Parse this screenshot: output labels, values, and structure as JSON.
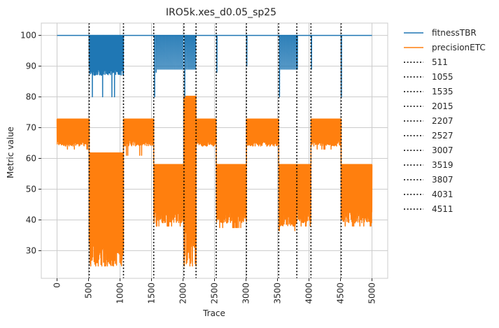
{
  "chart_data": {
    "type": "line",
    "title": "IRO5k.xes_d0.05_sp25",
    "xlabel": "Trace",
    "ylabel": "Metric value",
    "xlim": [
      -250,
      5250
    ],
    "ylim": [
      21,
      104
    ],
    "xticks": [
      0,
      500,
      1000,
      1500,
      2000,
      2500,
      3000,
      3500,
      4000,
      4500,
      5000
    ],
    "yticks": [
      30,
      40,
      50,
      60,
      70,
      80,
      90,
      100
    ],
    "grid": true,
    "legend_position": "outside-right",
    "series": [
      {
        "name": "fitnessTBR",
        "color": "#1f77b4",
        "baseline": 100,
        "segments": [
          {
            "x": [
              511,
              1055
            ],
            "min": 80,
            "typical_low": 87,
            "dense": true
          },
          {
            "x": [
              1535,
              1560
            ],
            "min": 80,
            "typical_low": 88,
            "dense": false
          },
          {
            "x": [
              1560,
              2007
            ],
            "min": 88,
            "typical_low": 89,
            "dense": false
          },
          {
            "x": [
              2015,
              2207
            ],
            "min": 80,
            "typical_low": 89,
            "dense": false
          },
          {
            "x": [
              2527,
              2545
            ],
            "min": 88,
            "typical_low": 88,
            "dense": false
          },
          {
            "x": [
              3007,
              3015
            ],
            "min": 90,
            "typical_low": 90,
            "dense": false
          },
          {
            "x": [
              3519,
              3807
            ],
            "min": 80,
            "typical_low": 89,
            "dense": false
          },
          {
            "x": [
              3807,
              3820
            ],
            "min": 89,
            "typical_low": 89,
            "dense": false
          },
          {
            "x": [
              4031,
              4045
            ],
            "min": 89,
            "typical_low": 89,
            "dense": false
          },
          {
            "x": [
              4511,
              4515
            ],
            "min": 80,
            "typical_low": 80,
            "dense": false
          }
        ]
      },
      {
        "name": "precisionETC",
        "color": "#ff7f0e",
        "segments": [
          {
            "x": [
              0,
              511
            ],
            "top": 72.8,
            "low_typical": 64,
            "low_min": 63
          },
          {
            "x": [
              511,
              1055
            ],
            "top": 61.8,
            "low_typical": 25,
            "low_min": 25
          },
          {
            "x": [
              1055,
              1535
            ],
            "top": 72.8,
            "low_typical": 64,
            "low_min": 61
          },
          {
            "x": [
              1535,
              2015
            ],
            "top": 58,
            "low_typical": 39,
            "low_min": 38
          },
          {
            "x": [
              2015,
              2207
            ],
            "top": 80.2,
            "low_typical": 25,
            "low_min": 25
          },
          {
            "x": [
              2207,
              2527
            ],
            "top": 72.8,
            "low_typical": 64,
            "low_min": 64
          },
          {
            "x": [
              2527,
              3007
            ],
            "top": 58,
            "low_typical": 39,
            "low_min": 37.5
          },
          {
            "x": [
              3007,
              3519
            ],
            "top": 72.8,
            "low_typical": 64,
            "low_min": 64
          },
          {
            "x": [
              3519,
              3807
            ],
            "top": 58,
            "low_typical": 38,
            "low_min": 36.5
          },
          {
            "x": [
              3807,
              4031
            ],
            "top": 58,
            "low_typical": 39,
            "low_min": 38
          },
          {
            "x": [
              4031,
              4511
            ],
            "top": 72.8,
            "low_typical": 64,
            "low_min": 63
          },
          {
            "x": [
              4511,
              5000
            ],
            "top": 58,
            "low_typical": 39,
            "low_min": 38
          }
        ]
      }
    ],
    "vlines": [
      {
        "label": "511",
        "x": 511
      },
      {
        "label": "1055",
        "x": 1055
      },
      {
        "label": "1535",
        "x": 1535
      },
      {
        "label": "2015",
        "x": 2015
      },
      {
        "label": "2207",
        "x": 2207
      },
      {
        "label": "2527",
        "x": 2527
      },
      {
        "label": "3007",
        "x": 3007
      },
      {
        "label": "3519",
        "x": 3519
      },
      {
        "label": "3807",
        "x": 3807
      },
      {
        "label": "4031",
        "x": 4031
      },
      {
        "label": "4511",
        "x": 4511
      }
    ]
  }
}
